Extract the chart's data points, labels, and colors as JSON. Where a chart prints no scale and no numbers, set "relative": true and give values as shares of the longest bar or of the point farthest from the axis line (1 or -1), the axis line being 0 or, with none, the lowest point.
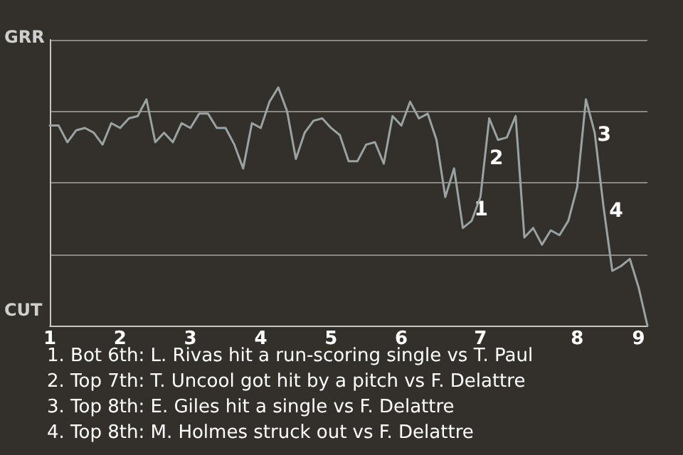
{
  "chart_data": {
    "type": "line",
    "relative": true,
    "categories": [
      "1",
      null,
      null,
      null,
      null,
      null,
      null,
      null,
      "2",
      null,
      null,
      null,
      null,
      null,
      null,
      null,
      "3",
      null,
      null,
      null,
      null,
      null,
      null,
      null,
      "4",
      null,
      null,
      null,
      null,
      null,
      null,
      null,
      "5",
      null,
      null,
      null,
      null,
      null,
      null,
      null,
      "6",
      null,
      null,
      null,
      null,
      null,
      null,
      null,
      null,
      "7",
      null,
      null,
      null,
      null,
      null,
      null,
      null,
      null,
      null,
      null,
      "8",
      null,
      null,
      null,
      null,
      null,
      null,
      "9",
      null
    ],
    "series": [
      {
        "color": "#9aa3a3",
        "values": [
          0.84,
          0.84,
          0.77,
          0.82,
          0.83,
          0.81,
          0.76,
          0.85,
          0.83,
          0.87,
          0.88,
          0.95,
          0.77,
          0.81,
          0.77,
          0.85,
          0.83,
          0.89,
          0.89,
          0.83,
          0.83,
          0.76,
          0.66,
          0.85,
          0.83,
          0.94,
          1,
          0.9,
          0.7,
          0.81,
          0.86,
          0.87,
          0.83,
          0.8,
          0.69,
          0.69,
          0.76,
          0.77,
          0.68,
          0.88,
          0.84,
          0.94,
          0.87,
          0.89,
          0.78,
          0.54,
          0.66,
          0.41,
          0.44,
          0.54,
          0.87,
          0.78,
          0.79,
          0.88,
          0.37,
          0.41,
          0.34,
          0.4,
          0.38,
          0.44,
          0.58,
          0.95,
          0.81,
          0.5,
          0.23,
          0.25,
          0.28,
          0.16,
          0
        ]
      }
    ],
    "grid": "y",
    "marker": "none",
    "line_style": "solid",
    "annotations": [
      "GRR",
      "CUT",
      "1",
      "2",
      "3",
      "4",
      "1. Bot 6th: L. Rivas hit a run-scoring single vs T. Paul",
      "2. Top 7th: T. Uncool got hit by a pitch vs F. Delattre",
      "3. Top 8th: E. Giles hit a single vs F. Delattre",
      "4. Top 8th: M. Holmes struck out vs F. Delattre"
    ]
  }
}
